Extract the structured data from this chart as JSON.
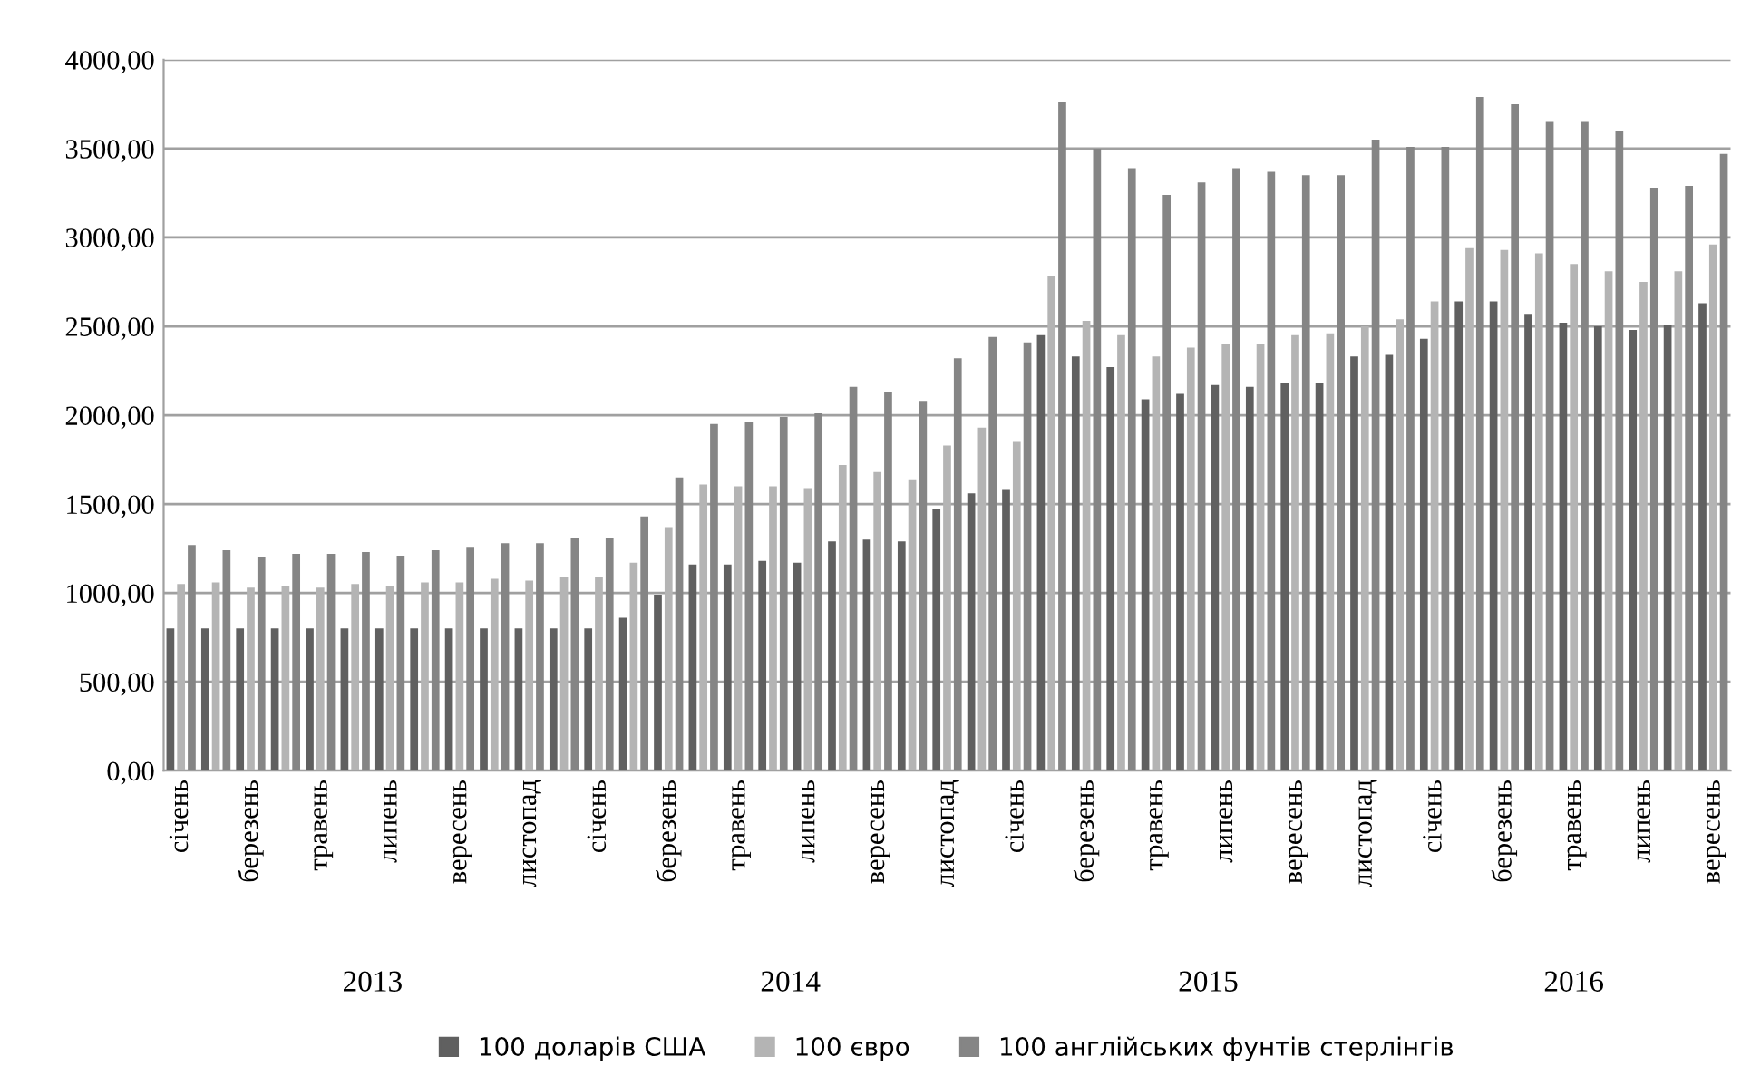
{
  "chart_data": {
    "type": "bar",
    "categories": [
      "січень",
      null,
      "березень",
      null,
      "травень",
      null,
      "липень",
      null,
      "вересень",
      null,
      "листопад",
      null,
      "січень",
      null,
      "березень",
      null,
      "травень",
      null,
      "липень",
      null,
      "вересень",
      null,
      "листопад",
      null,
      "січень",
      null,
      "березень",
      null,
      "травень",
      null,
      "липень",
      null,
      "вересень",
      null,
      "листопад",
      null,
      "січень",
      null,
      "березень",
      null,
      "травень",
      null,
      "липень",
      null,
      "вересень"
    ],
    "series": [
      {
        "name": "100 доларів США",
        "color": "#606060",
        "values": [
          800,
          800,
          800,
          800,
          800,
          800,
          800,
          800,
          800,
          800,
          800,
          800,
          800,
          860,
          990,
          1160,
          1160,
          1180,
          1170,
          1290,
          1300,
          1290,
          1470,
          1560,
          1580,
          2450,
          2330,
          2270,
          2090,
          2120,
          2170,
          2160,
          2180,
          2180,
          2330,
          2340,
          2430,
          2640,
          2640,
          2570,
          2520,
          2500,
          2480,
          2510,
          2630
        ]
      },
      {
        "name": "100 євро",
        "color": "#b4b4b4",
        "values": [
          1050,
          1060,
          1030,
          1040,
          1030,
          1050,
          1040,
          1060,
          1060,
          1080,
          1070,
          1090,
          1090,
          1170,
          1370,
          1610,
          1600,
          1600,
          1590,
          1720,
          1680,
          1640,
          1830,
          1930,
          1850,
          2780,
          2530,
          2450,
          2330,
          2380,
          2400,
          2400,
          2450,
          2460,
          2500,
          2540,
          2640,
          2940,
          2930,
          2910,
          2850,
          2810,
          2750,
          2810,
          2960
        ]
      },
      {
        "name": "100 англійських фунтів стерлінгів",
        "color": "#858585",
        "values": [
          1270,
          1240,
          1200,
          1220,
          1220,
          1230,
          1210,
          1240,
          1260,
          1280,
          1280,
          1310,
          1310,
          1430,
          1650,
          1950,
          1960,
          1990,
          2010,
          2160,
          2130,
          2080,
          2320,
          2440,
          2410,
          3760,
          3500,
          3390,
          3240,
          3310,
          3390,
          3370,
          3350,
          3350,
          3550,
          3510,
          3510,
          3790,
          3750,
          3650,
          3650,
          3600,
          3280,
          3290,
          3470
        ]
      }
    ],
    "ylim": [
      0,
      4000
    ],
    "yticks": [
      {
        "value": 0,
        "label": "0,00"
      },
      {
        "value": 500,
        "label": "500,00"
      },
      {
        "value": 1000,
        "label": "1000,00"
      },
      {
        "value": 1500,
        "label": "1500,00"
      },
      {
        "value": 2000,
        "label": "2000,00"
      },
      {
        "value": 2500,
        "label": "2500,00"
      },
      {
        "value": 3000,
        "label": "3000,00"
      },
      {
        "value": 3500,
        "label": "3500,00"
      },
      {
        "value": 4000,
        "label": "4000,00"
      }
    ],
    "annotations": [
      "2013",
      "2014",
      "2015",
      "2016"
    ],
    "grid": "y",
    "legend": "bottom"
  }
}
